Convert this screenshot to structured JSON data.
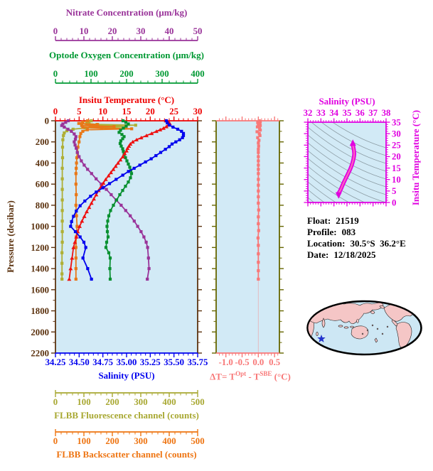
{
  "figure": {
    "plot_bg": "#D2EAF6",
    "axes": {
      "nitrate": {
        "title": "Nitrate Concentration (μm/kg)",
        "tick_labels": [
          "0",
          "10",
          "20",
          "30",
          "40",
          "50"
        ],
        "range": [
          0,
          50
        ],
        "color": "#993399"
      },
      "oxygen": {
        "title": "Optode Oxygen Concentration (μm/kg)",
        "tick_labels": [
          "0",
          "100",
          "200",
          "300",
          "400"
        ],
        "range": [
          0,
          400
        ],
        "color": "#009933"
      },
      "temperature": {
        "title": "Insitu Temperature (°C)",
        "tick_labels": [
          "0",
          "5",
          "10",
          "15",
          "20",
          "25",
          "30"
        ],
        "range": [
          0,
          30
        ],
        "color": "#EE0000"
      },
      "pressure": {
        "title": "Pressure (decibar)",
        "tick_labels": [
          "0",
          "200",
          "400",
          "600",
          "800",
          "1000",
          "1200",
          "1400",
          "1600",
          "1800",
          "2000",
          "2200"
        ],
        "range": [
          0,
          2200
        ],
        "color": "#5C3310"
      },
      "salinity": {
        "title": "Salinity (PSU)",
        "tick_labels": [
          "34.25",
          "34.50",
          "34.75",
          "35.00",
          "35.25",
          "35.50",
          "35.75"
        ],
        "range": [
          34.25,
          35.75
        ],
        "color": "#0000EE"
      },
      "fluorescence": {
        "title": "FLBB Fluorescence channel (counts)",
        "tick_labels": [
          "0",
          "100",
          "200",
          "300",
          "400",
          "500"
        ],
        "range": [
          0,
          500
        ],
        "color": "#A8A832"
      },
      "backscatter": {
        "title": "FLBB Backscatter channel (counts)",
        "tick_labels": [
          "0",
          "100",
          "200",
          "300",
          "400",
          "500"
        ],
        "range": [
          0,
          500
        ],
        "color": "#EE7411"
      },
      "delta_t": {
        "title_parts": {
          "p1": "ΔT= T",
          "sup1": "Opt",
          "p2": " - T",
          "sup2": "SBE",
          "p3": " (°C)"
        },
        "tick_labels": [
          "-1.0",
          "-0.5",
          "0.0",
          "0.5"
        ],
        "tick_values": [
          -1.0,
          -0.5,
          0.0,
          0.5
        ],
        "range": [
          -1.3,
          0.65
        ],
        "color": "#F87878",
        "frame_color": "#666600"
      },
      "ts_salinity": {
        "title": "Salinity (PSU)",
        "tick_labels": [
          "32",
          "33",
          "34",
          "35",
          "36",
          "37",
          "38"
        ],
        "range": [
          32,
          38
        ],
        "color": "#E000E0"
      },
      "ts_temperature": {
        "title": "Insitu Temperature (°C)",
        "tick_labels": [
          "0",
          "5",
          "10",
          "15",
          "20",
          "25",
          "30",
          "35"
        ],
        "range": [
          0,
          35
        ],
        "color": "#E000E0"
      }
    },
    "info": {
      "rows": [
        {
          "label": "Float:",
          "value": "21519"
        },
        {
          "label": "Profile:",
          "value": "083"
        },
        {
          "label": "Location:",
          "value": "30.5°S  36.2°E"
        },
        {
          "label": "Date:",
          "value": "12/18/2025"
        }
      ]
    },
    "map": {
      "ocean": "#CDE7F4",
      "land": "#F5C6C6",
      "outline": "#000000",
      "star_color": "#2233CC"
    }
  },
  "chart_data": [
    {
      "type": "line",
      "name": "insitu_temperature",
      "axis": "temperature",
      "ylabel": "Pressure (decibar)",
      "color": "#EE1111",
      "marker": "triangle",
      "points": [
        [
          23.3,
          0
        ],
        [
          23.9,
          15
        ],
        [
          24.1,
          25
        ],
        [
          23.8,
          40
        ],
        [
          23.4,
          55
        ],
        [
          22.8,
          70
        ],
        [
          22.1,
          85
        ],
        [
          21.3,
          100
        ],
        [
          20.3,
          120
        ],
        [
          19.2,
          140
        ],
        [
          18.1,
          160
        ],
        [
          17.1,
          180
        ],
        [
          16.3,
          200
        ],
        [
          15.8,
          220
        ],
        [
          15.5,
          240
        ],
        [
          15.2,
          260
        ],
        [
          15.0,
          285
        ],
        [
          14.6,
          310
        ],
        [
          14.2,
          340
        ],
        [
          13.7,
          370
        ],
        [
          13.2,
          400
        ],
        [
          12.7,
          430
        ],
        [
          12.2,
          460
        ],
        [
          11.7,
          490
        ],
        [
          11.2,
          520
        ],
        [
          10.6,
          555
        ],
        [
          10.1,
          590
        ],
        [
          9.6,
          625
        ],
        [
          9.1,
          660
        ],
        [
          8.6,
          700
        ],
        [
          8.1,
          740
        ],
        [
          7.6,
          780
        ],
        [
          7.1,
          820
        ],
        [
          6.6,
          860
        ],
        [
          6.1,
          905
        ],
        [
          5.6,
          950
        ],
        [
          5.1,
          1000
        ],
        [
          4.7,
          1050
        ],
        [
          4.4,
          1100
        ],
        [
          4.1,
          1150
        ],
        [
          3.8,
          1200
        ],
        [
          3.5,
          1300
        ],
        [
          3.2,
          1400
        ],
        [
          2.9,
          1500
        ]
      ]
    },
    {
      "type": "line",
      "name": "salinity",
      "axis": "salinity",
      "color": "#0000EE",
      "marker": "square",
      "points": [
        [
          35.42,
          0
        ],
        [
          35.43,
          20
        ],
        [
          35.45,
          40
        ],
        [
          35.49,
          60
        ],
        [
          35.54,
          80
        ],
        [
          35.58,
          100
        ],
        [
          35.6,
          120
        ],
        [
          35.6,
          140
        ],
        [
          35.59,
          160
        ],
        [
          35.56,
          180
        ],
        [
          35.52,
          200
        ],
        [
          35.48,
          220
        ],
        [
          35.45,
          245
        ],
        [
          35.41,
          270
        ],
        [
          35.36,
          300
        ],
        [
          35.31,
          330
        ],
        [
          35.26,
          360
        ],
        [
          35.2,
          390
        ],
        [
          35.14,
          420
        ],
        [
          35.08,
          450
        ],
        [
          35.02,
          480
        ],
        [
          34.96,
          515
        ],
        [
          34.89,
          555
        ],
        [
          34.82,
          595
        ],
        [
          34.75,
          635
        ],
        [
          34.68,
          675
        ],
        [
          34.62,
          715
        ],
        [
          34.56,
          760
        ],
        [
          34.51,
          805
        ],
        [
          34.47,
          855
        ],
        [
          34.44,
          905
        ],
        [
          34.42,
          955
        ],
        [
          34.41,
          1000
        ],
        [
          34.46,
          1050
        ],
        [
          34.51,
          1100
        ],
        [
          34.55,
          1150
        ],
        [
          34.57,
          1200
        ],
        [
          34.54,
          1300
        ],
        [
          34.59,
          1400
        ],
        [
          34.63,
          1500
        ]
      ]
    },
    {
      "type": "line",
      "name": "optode_oxygen",
      "axis": "oxygen",
      "color": "#089030",
      "marker": "square",
      "points": [
        [
          190,
          0
        ],
        [
          198,
          15
        ],
        [
          205,
          30
        ],
        [
          199,
          50
        ],
        [
          191,
          70
        ],
        [
          183,
          90
        ],
        [
          179,
          110
        ],
        [
          187,
          130
        ],
        [
          193,
          150
        ],
        [
          189,
          170
        ],
        [
          184,
          190
        ],
        [
          182,
          215
        ],
        [
          185,
          240
        ],
        [
          189,
          265
        ],
        [
          191,
          290
        ],
        [
          193,
          320
        ],
        [
          197,
          350
        ],
        [
          201,
          380
        ],
        [
          205,
          410
        ],
        [
          209,
          440
        ],
        [
          212,
          470
        ],
        [
          214,
          500
        ],
        [
          211,
          540
        ],
        [
          205,
          580
        ],
        [
          197,
          620
        ],
        [
          189,
          660
        ],
        [
          181,
          700
        ],
        [
          172,
          750
        ],
        [
          163,
          800
        ],
        [
          155,
          850
        ],
        [
          150,
          900
        ],
        [
          147,
          950
        ],
        [
          145,
          1000
        ],
        [
          146,
          1050
        ],
        [
          148,
          1100
        ],
        [
          144,
          1150
        ],
        [
          142,
          1200
        ],
        [
          150,
          1250
        ],
        [
          154,
          1300
        ],
        [
          153,
          1400
        ],
        [
          154,
          1500
        ]
      ]
    },
    {
      "type": "line",
      "name": "nitrate",
      "axis": "nitrate",
      "color": "#993399",
      "marker": "square",
      "points": [
        [
          4.5,
          0
        ],
        [
          3.6,
          15
        ],
        [
          2.6,
          30
        ],
        [
          2.2,
          45
        ],
        [
          3.1,
          60
        ],
        [
          4.4,
          80
        ],
        [
          5.6,
          100
        ],
        [
          6.6,
          125
        ],
        [
          7.2,
          150
        ],
        [
          7.0,
          175
        ],
        [
          6.6,
          200
        ],
        [
          6.9,
          230
        ],
        [
          7.3,
          260
        ],
        [
          7.7,
          300
        ],
        [
          8.3,
          340
        ],
        [
          9.1,
          380
        ],
        [
          10.1,
          420
        ],
        [
          11.3,
          460
        ],
        [
          12.7,
          500
        ],
        [
          14.3,
          550
        ],
        [
          16.1,
          600
        ],
        [
          17.9,
          650
        ],
        [
          19.6,
          700
        ],
        [
          21.3,
          750
        ],
        [
          23.1,
          800
        ],
        [
          24.7,
          850
        ],
        [
          26.3,
          900
        ],
        [
          27.7,
          950
        ],
        [
          28.9,
          1000
        ],
        [
          30.1,
          1050
        ],
        [
          31.1,
          1100
        ],
        [
          31.9,
          1150
        ],
        [
          32.4,
          1200
        ],
        [
          32.7,
          1300
        ],
        [
          32.9,
          1400
        ],
        [
          32.3,
          1500
        ]
      ]
    },
    {
      "type": "line",
      "name": "flbb_fluorescence",
      "axis": "fluorescence",
      "color": "#AFAF35",
      "marker": "square",
      "points": [
        [
          126,
          0
        ],
        [
          118,
          12
        ],
        [
          110,
          25
        ],
        [
          146,
          35
        ],
        [
          282,
          42
        ],
        [
          122,
          48
        ],
        [
          248,
          58
        ],
        [
          104,
          68
        ],
        [
          62,
          80
        ],
        [
          40,
          95
        ],
        [
          31,
          115
        ],
        [
          28,
          140
        ],
        [
          26,
          180
        ],
        [
          25,
          250
        ],
        [
          25,
          350
        ],
        [
          24,
          450
        ],
        [
          24,
          550
        ],
        [
          24,
          650
        ],
        [
          24,
          750
        ],
        [
          24,
          850
        ],
        [
          24,
          950
        ],
        [
          24,
          1050
        ],
        [
          24,
          1150
        ],
        [
          23,
          1250
        ],
        [
          23,
          1350
        ],
        [
          23,
          1450
        ],
        [
          23,
          1500
        ]
      ]
    },
    {
      "type": "line",
      "name": "flbb_backscatter",
      "axis": "backscatter",
      "color": "#E87818",
      "marker": "square",
      "points": [
        [
          113,
          0
        ],
        [
          96,
          12
        ],
        [
          82,
          25
        ],
        [
          148,
          35
        ],
        [
          92,
          45
        ],
        [
          206,
          55
        ],
        [
          96,
          62
        ],
        [
          162,
          70
        ],
        [
          268,
          76
        ],
        [
          112,
          85
        ],
        [
          96,
          100
        ],
        [
          89,
          120
        ],
        [
          86,
          150
        ],
        [
          83,
          200
        ],
        [
          79,
          250
        ],
        [
          77,
          300
        ],
        [
          75,
          350
        ],
        [
          74,
          400
        ],
        [
          73,
          450
        ],
        [
          72,
          500
        ],
        [
          72,
          600
        ],
        [
          73,
          700
        ],
        [
          72,
          800
        ],
        [
          74,
          900
        ],
        [
          76,
          1000
        ],
        [
          73,
          1100
        ],
        [
          72,
          1200
        ],
        [
          72,
          1300
        ],
        [
          72,
          1400
        ],
        [
          72,
          1500
        ]
      ]
    },
    {
      "type": "line",
      "name": "delta_t",
      "axis": "delta_t",
      "color": "#F87878",
      "marker": "square",
      "points": [
        [
          0.03,
          0
        ],
        [
          0.06,
          8
        ],
        [
          -0.02,
          16
        ],
        [
          0.05,
          24
        ],
        [
          0.0,
          32
        ],
        [
          0.06,
          45
        ],
        [
          -0.03,
          58
        ],
        [
          0.04,
          72
        ],
        [
          0.06,
          88
        ],
        [
          -0.04,
          104
        ],
        [
          0.03,
          120
        ],
        [
          0.05,
          140
        ],
        [
          -0.02,
          160
        ],
        [
          0.02,
          185
        ],
        [
          0.0,
          210
        ],
        [
          0.01,
          240
        ],
        [
          0.0,
          270
        ],
        [
          0.0,
          300
        ],
        [
          0.0,
          340
        ],
        [
          0.0,
          380
        ],
        [
          0.0,
          420
        ],
        [
          0.0,
          460
        ],
        [
          0.0,
          500
        ],
        [
          0.0,
          555
        ],
        [
          0.0,
          610
        ],
        [
          0.0,
          665
        ],
        [
          0.0,
          720
        ],
        [
          0.0,
          780
        ],
        [
          0.01,
          845
        ],
        [
          0.0,
          910
        ],
        [
          0.0,
          975
        ],
        [
          0.01,
          1040
        ],
        [
          -0.01,
          1110
        ],
        [
          0.0,
          1180
        ],
        [
          0.0,
          1260
        ],
        [
          0.0,
          1340
        ],
        [
          0.0,
          1420
        ],
        [
          0.0,
          1500
        ]
      ]
    },
    {
      "type": "line",
      "name": "ts_curve",
      "x_axis": "ts_salinity",
      "y_axis": "ts_temperature",
      "color": "#E000E0",
      "inner_color": "#FF5FC0",
      "points": [
        [
          35.45,
          25.0
        ],
        [
          35.5,
          23.8
        ],
        [
          35.54,
          22.5
        ],
        [
          35.56,
          21.2
        ],
        [
          35.53,
          19.8
        ],
        [
          35.48,
          18.5
        ],
        [
          35.42,
          17.2
        ],
        [
          35.34,
          15.8
        ],
        [
          35.24,
          14.4
        ],
        [
          35.12,
          13.0
        ],
        [
          35.0,
          11.6
        ],
        [
          34.88,
          10.2
        ],
        [
          34.76,
          8.8
        ],
        [
          34.66,
          7.5
        ],
        [
          34.57,
          6.3
        ],
        [
          34.49,
          5.3
        ],
        [
          34.42,
          4.6
        ],
        [
          34.36,
          4.1
        ]
      ]
    }
  ]
}
